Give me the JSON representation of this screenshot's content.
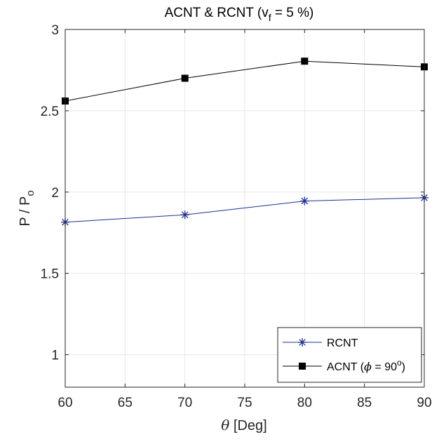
{
  "chart_data": {
    "type": "line",
    "title": {
      "main": "ACNT & RCNT (v",
      "sub": "f",
      "rest": " = 5 %)"
    },
    "xlabel": {
      "symbol": "θ",
      "text": " [Deg]"
    },
    "ylabel": {
      "main": "P / P",
      "sub": "o"
    },
    "xlim": [
      60,
      90
    ],
    "ylim": [
      0.8,
      3
    ],
    "xticks": [
      60,
      65,
      70,
      75,
      80,
      85,
      90
    ],
    "xtick_labels": [
      "60",
      "65",
      "70",
      "75",
      "80",
      "85",
      "90"
    ],
    "yticks": [
      1,
      1.5,
      2,
      2.5,
      3
    ],
    "ytick_labels": [
      "1",
      "1.5",
      "2",
      "2.5",
      "3"
    ],
    "grid": true,
    "legend_position": "bottom-right",
    "x": [
      60,
      70,
      80,
      90
    ],
    "series": [
      {
        "name": "RCNT",
        "legend_label": "RCNT",
        "values": [
          1.815,
          1.86,
          1.945,
          1.965
        ],
        "color": "#1f2f8f",
        "marker": "asterisk"
      },
      {
        "name": "ACNT (ϕ = 90°)",
        "legend_label": {
          "pre": "ACNT (",
          "phi": "ϕ",
          "mid": " = 90",
          "sup": "o",
          "post": ")"
        },
        "values": [
          2.56,
          2.7,
          2.805,
          2.77
        ],
        "color": "#000000",
        "marker": "square"
      }
    ]
  }
}
